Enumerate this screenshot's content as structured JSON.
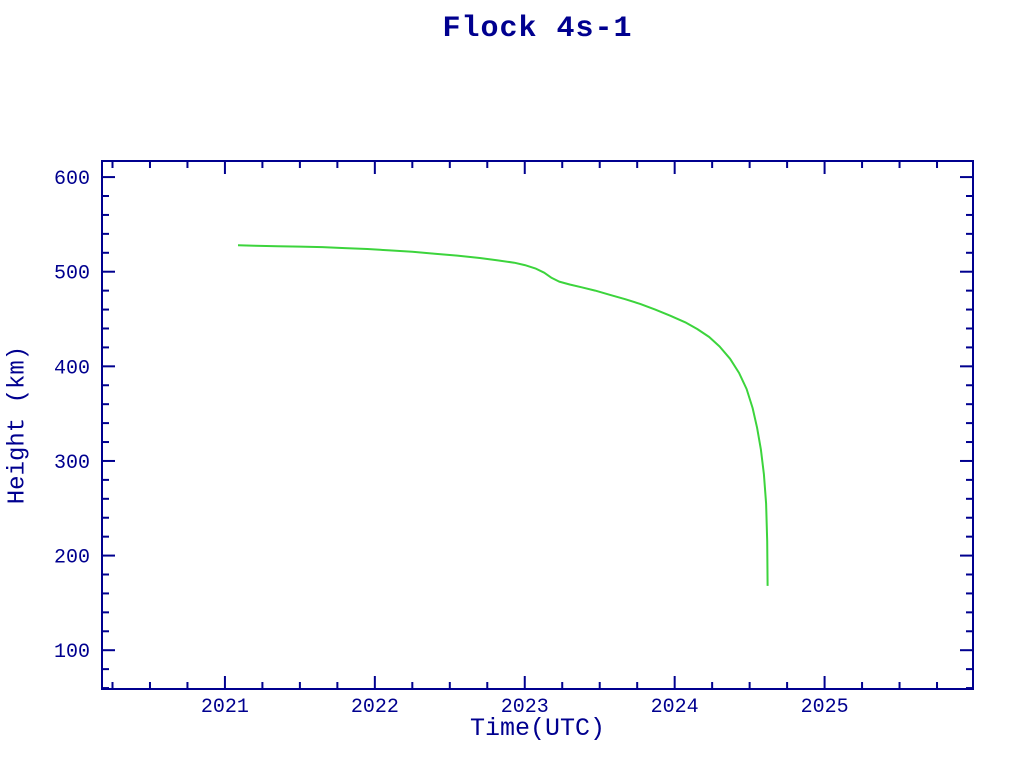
{
  "window": {
    "title": "Flock 4s-1"
  },
  "colors": {
    "background": "#ffffff",
    "axis": "#00008f",
    "label_text": "#00008f",
    "curve": "#3cd43c"
  },
  "chart_data": {
    "type": "line",
    "title": "Flock 4s-1",
    "xlabel": "Time(UTC)",
    "ylabel": "Height (km)",
    "xlim": [
      2020.18,
      2025.99
    ],
    "ylim": [
      59,
      617
    ],
    "x_major_ticks": [
      2021,
      2022,
      2023,
      2024,
      2025
    ],
    "x_minor_step": 0.25,
    "y_major_ticks": [
      100,
      200,
      300,
      400,
      500,
      600
    ],
    "y_minor_step": 20,
    "grid": false,
    "legend": false,
    "axis_color": "#00008f",
    "series": [
      {
        "name": "Flock 4s-1",
        "color": "#3cd43c",
        "points": [
          [
            2021.087,
            528
          ],
          [
            2021.2,
            527.5
          ],
          [
            2021.35,
            527
          ],
          [
            2021.5,
            526.5
          ],
          [
            2021.65,
            526
          ],
          [
            2021.8,
            525
          ],
          [
            2021.95,
            524
          ],
          [
            2022.1,
            522.5
          ],
          [
            2022.25,
            521
          ],
          [
            2022.4,
            519
          ],
          [
            2022.55,
            517
          ],
          [
            2022.7,
            514.5
          ],
          [
            2022.82,
            512
          ],
          [
            2022.93,
            509.5
          ],
          [
            2023.0,
            507
          ],
          [
            2023.07,
            503.5
          ],
          [
            2023.13,
            499
          ],
          [
            2023.18,
            493.5
          ],
          [
            2023.23,
            489.5
          ],
          [
            2023.3,
            486.5
          ],
          [
            2023.38,
            483.5
          ],
          [
            2023.47,
            480
          ],
          [
            2023.57,
            475.5
          ],
          [
            2023.67,
            471
          ],
          [
            2023.77,
            466
          ],
          [
            2023.87,
            460
          ],
          [
            2023.97,
            453.5
          ],
          [
            2024.07,
            446.5
          ],
          [
            2024.15,
            439.5
          ],
          [
            2024.23,
            431
          ],
          [
            2024.3,
            421
          ],
          [
            2024.37,
            408
          ],
          [
            2024.43,
            393
          ],
          [
            2024.48,
            376
          ],
          [
            2024.52,
            356
          ],
          [
            2024.55,
            335
          ],
          [
            2024.575,
            312
          ],
          [
            2024.595,
            286
          ],
          [
            2024.61,
            255
          ],
          [
            2024.617,
            215
          ],
          [
            2024.62,
            168
          ]
        ]
      }
    ]
  }
}
